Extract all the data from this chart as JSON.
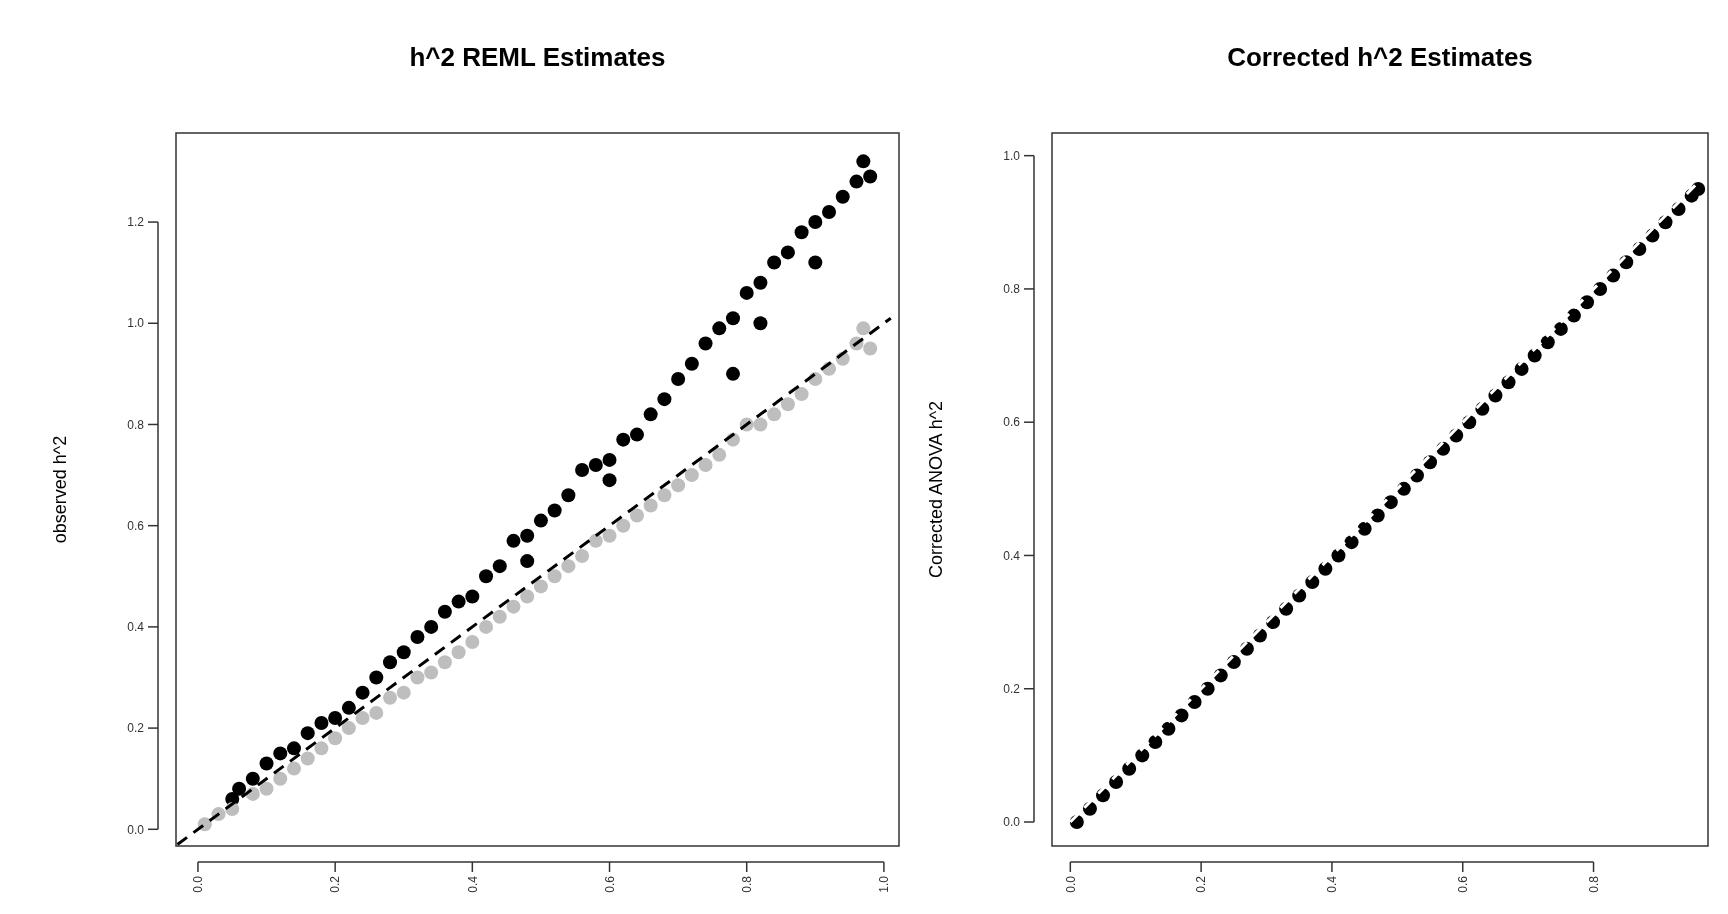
{
  "chart_data": [
    {
      "type": "scatter",
      "title": "h^2 REML Estimates",
      "ylabel": "observed h^2",
      "xlim": [
        -0.032,
        1.022
      ],
      "ylim": [
        -0.033,
        1.376
      ],
      "xticks": [
        {
          "value": 0,
          "label": "0.0"
        },
        {
          "value": 0.2,
          "label": "0.2"
        },
        {
          "value": 0.4,
          "label": "0.4"
        },
        {
          "value": 0.6,
          "label": "0.6"
        },
        {
          "value": 0.8,
          "label": "0.8"
        },
        {
          "value": 1,
          "label": "1.0"
        }
      ],
      "yticks": [
        {
          "value": 0,
          "label": "0.0"
        },
        {
          "value": 0.2,
          "label": "0.2"
        },
        {
          "value": 0.4,
          "label": "0.4"
        },
        {
          "value": 0.6,
          "label": "0.6"
        },
        {
          "value": 0.8,
          "label": "0.8"
        },
        {
          "value": 1,
          "label": "1.0"
        },
        {
          "value": 1.2,
          "label": "1.2"
        }
      ],
      "series": [
        {
          "marker": "circle",
          "color": "#000000",
          "x": [
            0.05,
            0.06,
            0.08,
            0.1,
            0.12,
            0.14,
            0.16,
            0.18,
            0.2,
            0.22,
            0.24,
            0.26,
            0.28,
            0.3,
            0.32,
            0.34,
            0.36,
            0.38,
            0.4,
            0.42,
            0.44,
            0.46,
            0.48,
            0.5,
            0.52,
            0.54,
            0.56,
            0.58,
            0.6,
            0.62,
            0.64,
            0.66,
            0.68,
            0.7,
            0.72,
            0.74,
            0.76,
            0.78,
            0.8,
            0.82,
            0.84,
            0.86,
            0.88,
            0.9,
            0.92,
            0.94,
            0.96,
            0.97,
            0.98,
            0.48,
            0.6,
            0.78,
            0.82,
            0.9
          ],
          "values": [
            0.06,
            0.08,
            0.1,
            0.13,
            0.15,
            0.16,
            0.19,
            0.21,
            0.22,
            0.24,
            0.27,
            0.3,
            0.33,
            0.35,
            0.38,
            0.4,
            0.43,
            0.45,
            0.46,
            0.5,
            0.52,
            0.57,
            0.58,
            0.61,
            0.63,
            0.66,
            0.71,
            0.72,
            0.73,
            0.77,
            0.78,
            0.82,
            0.85,
            0.89,
            0.92,
            0.96,
            0.99,
            1.01,
            1.06,
            1.08,
            1.12,
            1.14,
            1.18,
            1.2,
            1.22,
            1.25,
            1.28,
            1.32,
            1.29,
            0.53,
            0.69,
            0.9,
            1.0,
            1.12
          ]
        },
        {
          "marker": "circle",
          "color": "#bebebe",
          "x": [
            0.01,
            0.03,
            0.05,
            0.08,
            0.1,
            0.12,
            0.14,
            0.16,
            0.18,
            0.2,
            0.22,
            0.24,
            0.26,
            0.28,
            0.3,
            0.32,
            0.34,
            0.36,
            0.38,
            0.4,
            0.42,
            0.44,
            0.46,
            0.48,
            0.5,
            0.52,
            0.54,
            0.56,
            0.58,
            0.6,
            0.62,
            0.64,
            0.66,
            0.68,
            0.7,
            0.72,
            0.74,
            0.76,
            0.78,
            0.8,
            0.82,
            0.84,
            0.86,
            0.88,
            0.9,
            0.92,
            0.94,
            0.96,
            0.97,
            0.98
          ],
          "values": [
            0.01,
            0.03,
            0.04,
            0.07,
            0.08,
            0.1,
            0.12,
            0.14,
            0.16,
            0.18,
            0.2,
            0.22,
            0.23,
            0.26,
            0.27,
            0.3,
            0.31,
            0.33,
            0.35,
            0.37,
            0.4,
            0.42,
            0.44,
            0.46,
            0.48,
            0.5,
            0.52,
            0.54,
            0.57,
            0.58,
            0.6,
            0.62,
            0.64,
            0.66,
            0.68,
            0.7,
            0.72,
            0.74,
            0.77,
            0.8,
            0.8,
            0.82,
            0.84,
            0.86,
            0.89,
            0.91,
            0.93,
            0.96,
            0.99,
            0.95
          ]
        },
        {
          "type": "line",
          "color": "#000000",
          "line_style": "dashed",
          "x": [
            -0.03,
            1.01
          ],
          "values": [
            -0.03,
            1.01
          ]
        }
      ]
    },
    {
      "type": "scatter",
      "title": "Corrected h^2 Estimates",
      "ylabel": "Corrected ANOVA h^2",
      "xlim": [
        -0.028,
        0.975
      ],
      "ylim": [
        -0.036,
        1.034
      ],
      "xticks": [
        {
          "value": 0,
          "label": "0.0"
        },
        {
          "value": 0.2,
          "label": "0.2"
        },
        {
          "value": 0.4,
          "label": "0.4"
        },
        {
          "value": 0.6,
          "label": "0.6"
        },
        {
          "value": 0.8,
          "label": "0.8"
        }
      ],
      "yticks": [
        {
          "value": 0,
          "label": "0.0"
        },
        {
          "value": 0.2,
          "label": "0.2"
        },
        {
          "value": 0.4,
          "label": "0.4"
        },
        {
          "value": 0.6,
          "label": "0.6"
        },
        {
          "value": 0.8,
          "label": "0.8"
        },
        {
          "value": 1,
          "label": "1.0"
        }
      ],
      "series": [
        {
          "marker": "circle",
          "color": "#000000",
          "x": [
            0.01,
            0.03,
            0.05,
            0.07,
            0.09,
            0.11,
            0.13,
            0.15,
            0.17,
            0.19,
            0.21,
            0.23,
            0.25,
            0.27,
            0.29,
            0.31,
            0.33,
            0.35,
            0.37,
            0.39,
            0.41,
            0.43,
            0.45,
            0.47,
            0.49,
            0.51,
            0.53,
            0.55,
            0.57,
            0.59,
            0.61,
            0.63,
            0.65,
            0.67,
            0.69,
            0.71,
            0.73,
            0.75,
            0.77,
            0.79,
            0.81,
            0.83,
            0.85,
            0.87,
            0.89,
            0.91,
            0.93,
            0.95,
            0.96
          ],
          "values": [
            0.0,
            0.02,
            0.04,
            0.06,
            0.08,
            0.1,
            0.12,
            0.14,
            0.16,
            0.18,
            0.2,
            0.22,
            0.24,
            0.26,
            0.28,
            0.3,
            0.32,
            0.34,
            0.36,
            0.38,
            0.4,
            0.42,
            0.44,
            0.46,
            0.48,
            0.5,
            0.52,
            0.54,
            0.56,
            0.58,
            0.6,
            0.62,
            0.64,
            0.66,
            0.68,
            0.7,
            0.72,
            0.74,
            0.76,
            0.78,
            0.8,
            0.82,
            0.84,
            0.86,
            0.88,
            0.9,
            0.92,
            0.94,
            0.95
          ]
        },
        {
          "type": "line",
          "color": "#ffffff",
          "line_style": "dashed",
          "x": [
            0.0,
            0.975
          ],
          "values": [
            0.0,
            0.975
          ]
        }
      ]
    }
  ]
}
